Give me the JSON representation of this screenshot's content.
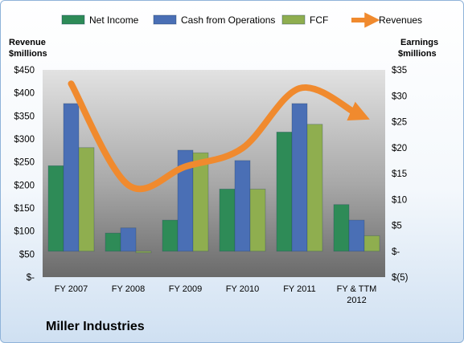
{
  "chart_data": {
    "type": "bar",
    "company": "Miller Industries",
    "categories": [
      "FY 2007",
      "FY 2008",
      "FY 2009",
      "FY 2010",
      "FY 2011",
      "FY & TTM\n2012"
    ],
    "series": [
      {
        "name": "Net Income",
        "axis": "right",
        "color": "#2e8b57",
        "values": [
          16.5,
          3.5,
          6.0,
          12.0,
          23.0,
          9.0
        ]
      },
      {
        "name": "Cash from Operations",
        "axis": "right",
        "color": "#4a6fb5",
        "values": [
          28.5,
          4.5,
          19.5,
          17.5,
          28.5,
          6.0
        ]
      },
      {
        "name": "FCF",
        "axis": "right",
        "color": "#8fae4f",
        "values": [
          20.0,
          -0.3,
          19.0,
          12.0,
          24.5,
          3.0
        ]
      },
      {
        "name": "Revenues",
        "axis": "left",
        "color": "#f08a2e",
        "type": "line",
        "values": [
          420,
          200,
          240,
          280,
          410,
          355
        ]
      }
    ],
    "left_axis": {
      "label_line1": "Revenue",
      "label_line2": "$millions",
      "ylim": [
        0,
        450
      ],
      "ticks": [
        "$-",
        "$50",
        "$100",
        "$150",
        "$200",
        "$250",
        "$300",
        "$350",
        "$400",
        "$450"
      ]
    },
    "right_axis": {
      "label_line1": "Earnings",
      "label_line2": "$millions",
      "ylim": [
        -5,
        35
      ],
      "ticks": [
        "$(5)",
        "$-",
        "$5",
        "$10",
        "$15",
        "$20",
        "$25",
        "$30",
        "$35"
      ]
    },
    "legend_position": "top",
    "grid": false
  }
}
